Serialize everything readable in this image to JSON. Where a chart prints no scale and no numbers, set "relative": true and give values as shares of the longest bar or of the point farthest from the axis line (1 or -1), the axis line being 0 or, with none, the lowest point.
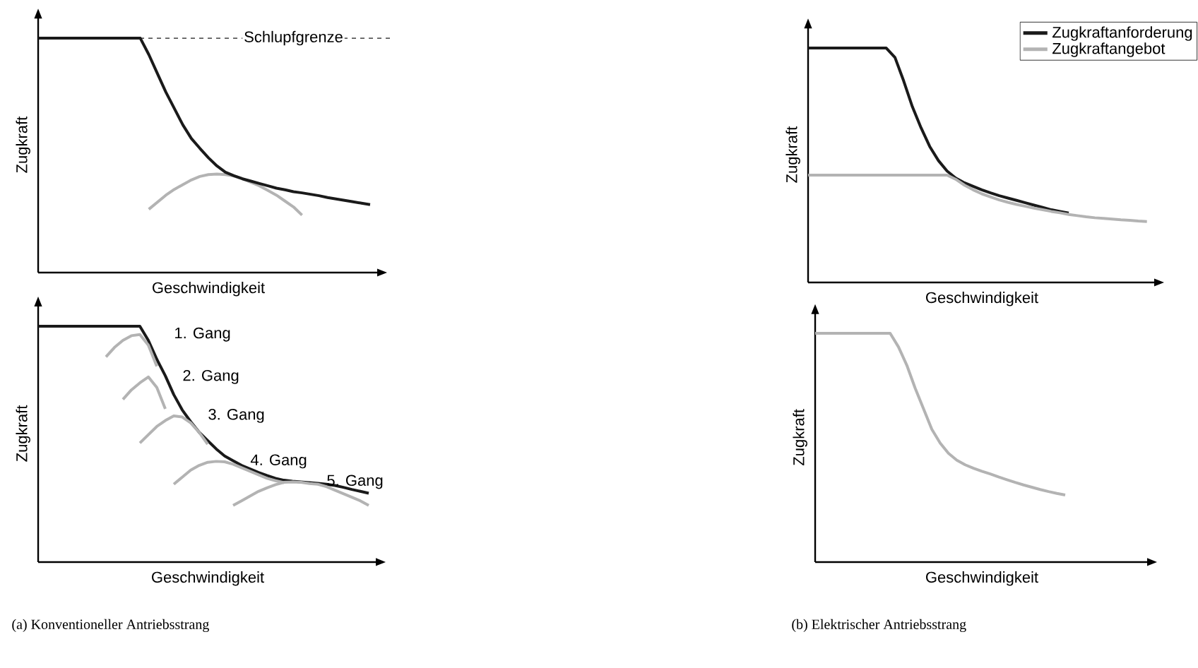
{
  "chart_data": [
    {
      "type": "line",
      "relative": true,
      "xlabel": "Geschwindigkeit",
      "ylabel": "Zugkraft",
      "categories": [
        null,
        null,
        null,
        null,
        null,
        null,
        null,
        null,
        null,
        null,
        null,
        null,
        null,
        null,
        null,
        null,
        null,
        null,
        null,
        null,
        null,
        null,
        null,
        null,
        null,
        null,
        null,
        null,
        null,
        null,
        null,
        null,
        null,
        null,
        null,
        null,
        null,
        null,
        null,
        null,
        null
      ],
      "series": [
        {
          "color": "#b3b3b3",
          "values": [
            null,
            null,
            null,
            null,
            null,
            null,
            null,
            null,
            null,
            null,
            null,
            null,
            null,
            0.27,
            0.3,
            0.33,
            0.355,
            0.375,
            0.395,
            0.41,
            0.418,
            0.42,
            0.418,
            0.412,
            0.4,
            0.385,
            0.37,
            0.35,
            0.33,
            0.305,
            0.28,
            0.245,
            null,
            null,
            null,
            null,
            null,
            null,
            null,
            null,
            null
          ]
        },
        {
          "color": "#1a1a1a",
          "values": [
            1,
            1,
            1,
            1,
            1,
            1,
            1,
            1,
            1,
            1,
            1,
            1,
            1,
            0.93,
            0.85,
            0.77,
            0.7,
            0.63,
            0.572,
            0.53,
            0.49,
            0.455,
            0.428,
            0.413,
            0.4,
            0.39,
            0.38,
            0.37,
            0.36,
            0.353,
            0.345,
            0.34,
            0.334,
            0.328,
            0.32,
            0.314,
            0.308,
            0.302,
            0.296,
            0.29,
            null
          ]
        }
      ],
      "ref_lines": [
        {
          "axis": "y",
          "value": 1,
          "label": "Schlupfgrenze",
          "color": "#1a1a1a",
          "line_style": "dashed"
        }
      ]
    },
    {
      "type": "line",
      "relative": true,
      "xlabel": "Geschwindigkeit",
      "ylabel": "Zugkraft",
      "categories": [
        null,
        null,
        null,
        null,
        null,
        null,
        null,
        null,
        null,
        null,
        null,
        null,
        null,
        null,
        null,
        null,
        null,
        null,
        null,
        null,
        null,
        null,
        null,
        null,
        null,
        null,
        null,
        null,
        null,
        null,
        null,
        null,
        null,
        null,
        null,
        null,
        null,
        null,
        null,
        null,
        null
      ],
      "series": [
        {
          "color": "#1a1a1a",
          "values": [
            1,
            1,
            1,
            1,
            1,
            1,
            1,
            1,
            1,
            1,
            1,
            1,
            1,
            0.94,
            0.86,
            0.79,
            0.71,
            0.645,
            0.595,
            0.55,
            0.515,
            0.48,
            0.45,
            0.43,
            0.41,
            0.395,
            0.38,
            0.367,
            0.355,
            0.347,
            0.343,
            0.34,
            0.337,
            0.334,
            0.33,
            0.325,
            0.317,
            0.308,
            0.3,
            0.292,
            null
          ]
        },
        {
          "name": "1. Gang",
          "color": "#b3b3b3",
          "values": [
            null,
            null,
            null,
            null,
            null,
            null,
            null,
            null,
            0.87,
            0.91,
            0.94,
            0.96,
            0.965,
            0.92,
            0.83,
            null,
            null,
            null,
            null,
            null,
            null,
            null,
            null,
            null,
            null,
            null,
            null,
            null,
            null,
            null,
            null,
            null,
            null,
            null,
            null,
            null,
            null,
            null,
            null,
            null,
            null
          ]
        },
        {
          "name": "2. Gang",
          "color": "#b3b3b3",
          "values": [
            null,
            null,
            null,
            null,
            null,
            null,
            null,
            null,
            null,
            null,
            0.69,
            0.73,
            0.76,
            0.785,
            0.74,
            0.65,
            null,
            null,
            null,
            null,
            null,
            null,
            null,
            null,
            null,
            null,
            null,
            null,
            null,
            null,
            null,
            null,
            null,
            null,
            null,
            null,
            null,
            null,
            null,
            null,
            null
          ]
        },
        {
          "name": "3. Gang",
          "color": "#b3b3b3",
          "values": [
            null,
            null,
            null,
            null,
            null,
            null,
            null,
            null,
            null,
            null,
            null,
            null,
            0.505,
            0.54,
            0.575,
            0.6,
            0.62,
            0.615,
            0.59,
            0.55,
            0.5,
            null,
            null,
            null,
            null,
            null,
            null,
            null,
            null,
            null,
            null,
            null,
            null,
            null,
            null,
            null,
            null,
            null,
            null,
            null,
            null
          ]
        },
        {
          "name": "4. Gang",
          "color": "#b3b3b3",
          "values": [
            null,
            null,
            null,
            null,
            null,
            null,
            null,
            null,
            null,
            null,
            null,
            null,
            null,
            null,
            null,
            null,
            0.33,
            0.36,
            0.39,
            0.41,
            0.423,
            0.427,
            0.425,
            0.415,
            0.4,
            0.385,
            0.37,
            0.355,
            0.345,
            0.337,
            null,
            null,
            null,
            null,
            null,
            null,
            null,
            null,
            null,
            null,
            null
          ]
        },
        {
          "name": "5. Gang",
          "color": "#b3b3b3",
          "values": [
            null,
            null,
            null,
            null,
            null,
            null,
            null,
            null,
            null,
            null,
            null,
            null,
            null,
            null,
            null,
            null,
            null,
            null,
            null,
            null,
            null,
            null,
            null,
            0.24,
            0.26,
            0.28,
            0.3,
            0.315,
            0.328,
            0.338,
            0.34,
            0.338,
            0.333,
            0.33,
            0.32,
            0.305,
            0.29,
            0.275,
            0.26,
            0.24,
            null
          ]
        }
      ],
      "annotations": [
        "(a)  Konventioneller Antriebsstrang"
      ]
    },
    {
      "type": "line",
      "relative": true,
      "xlabel": "Geschwindigkeit",
      "ylabel": "Zugkraft",
      "legend": "top right",
      "categories": [
        null,
        null,
        null,
        null,
        null,
        null,
        null,
        null,
        null,
        null,
        null,
        null,
        null,
        null,
        null,
        null,
        null,
        null,
        null,
        null,
        null,
        null,
        null,
        null,
        null,
        null,
        null,
        null,
        null,
        null,
        null,
        null,
        null,
        null,
        null,
        null,
        null,
        null,
        null,
        null,
        null
      ],
      "series": [
        {
          "name": "Zugkraftanforderung",
          "color": "#1a1a1a",
          "values": [
            1,
            1,
            1,
            1,
            1,
            1,
            1,
            1,
            1,
            1,
            0.96,
            0.86,
            0.75,
            0.66,
            0.58,
            0.52,
            0.475,
            0.445,
            0.425,
            0.41,
            0.395,
            0.382,
            0.37,
            0.36,
            0.35,
            0.34,
            0.33,
            0.32,
            0.31,
            0.303,
            0.296,
            null,
            null,
            null,
            null,
            null,
            null,
            null,
            null,
            null,
            null
          ]
        },
        {
          "name": "Zugkraftangebot",
          "color": "#b3b3b3",
          "values": [
            0.458,
            0.458,
            0.458,
            0.458,
            0.458,
            0.458,
            0.458,
            0.458,
            0.458,
            0.458,
            0.458,
            0.458,
            0.458,
            0.458,
            0.458,
            0.458,
            0.458,
            0.44,
            0.415,
            0.395,
            0.378,
            0.365,
            0.352,
            0.342,
            0.333,
            0.325,
            0.317,
            0.31,
            0.303,
            0.297,
            0.29,
            0.285,
            0.28,
            0.276,
            0.273,
            0.27,
            0.267,
            0.265,
            0.262,
            0.26,
            null
          ]
        }
      ]
    },
    {
      "type": "line",
      "relative": true,
      "xlabel": "Geschwindigkeit",
      "ylabel": "Zugkraft",
      "categories": [
        null,
        null,
        null,
        null,
        null,
        null,
        null,
        null,
        null,
        null,
        null,
        null,
        null,
        null,
        null,
        null,
        null,
        null,
        null,
        null,
        null,
        null,
        null,
        null,
        null,
        null,
        null,
        null,
        null,
        null,
        null,
        null,
        null,
        null,
        null,
        null,
        null,
        null,
        null,
        null,
        null
      ],
      "series": [
        {
          "color": "#b3b3b3",
          "values": [
            1,
            1,
            1,
            1,
            1,
            1,
            1,
            1,
            1,
            1,
            0.94,
            0.86,
            0.76,
            0.67,
            0.58,
            0.52,
            0.475,
            0.445,
            0.425,
            0.41,
            0.397,
            0.385,
            0.372,
            0.36,
            0.348,
            0.337,
            0.327,
            0.317,
            0.308,
            0.3,
            0.293,
            null,
            null,
            null,
            null,
            null,
            null,
            null,
            null,
            null,
            null
          ]
        }
      ],
      "annotations": [
        "(b)  Elektrischer Antriebsstrang"
      ]
    }
  ]
}
